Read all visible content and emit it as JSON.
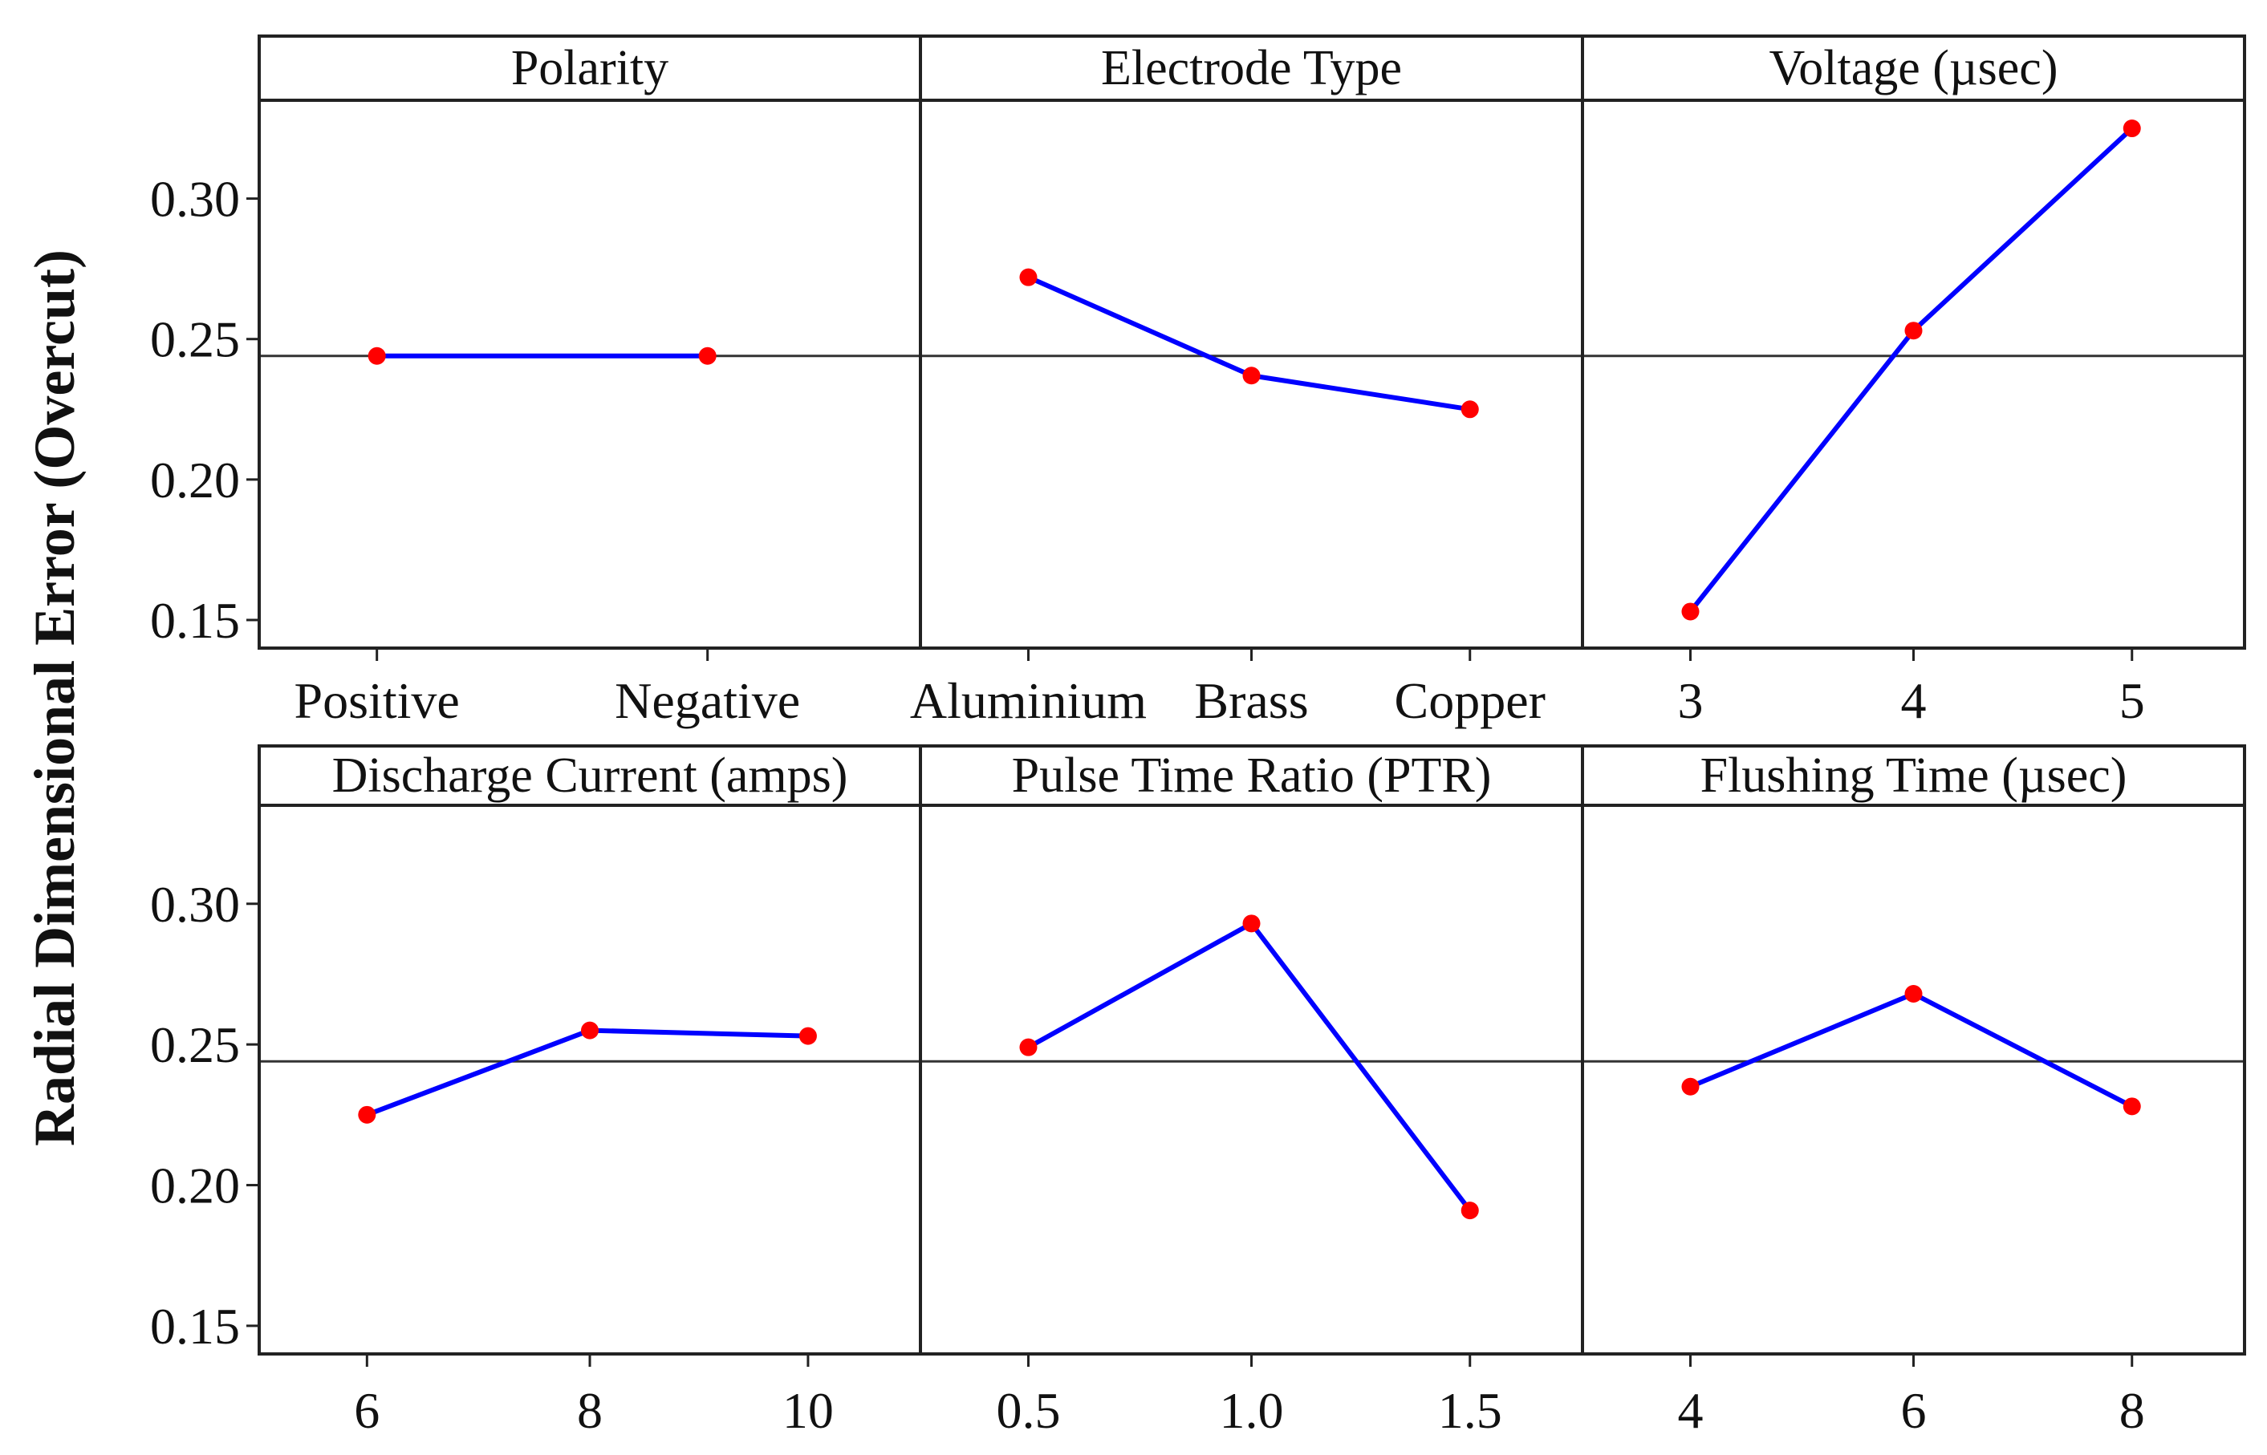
{
  "chart_data": {
    "type": "line",
    "ylabel": "Radial Dimensional Error (Overcut)",
    "ylim": [
      0.14,
      0.335
    ],
    "yticks": [
      0.15,
      0.2,
      0.25,
      0.3
    ],
    "ytick_labels": [
      "0.15",
      "0.20",
      "0.25",
      "0.30"
    ],
    "reference_mean": 0.244,
    "marker_color": "#ff0000",
    "line_color": "#0000ff",
    "panels": [
      {
        "title": "Polarity",
        "categories": [
          "Positive",
          "Negative"
        ],
        "values": [
          0.244,
          0.244
        ]
      },
      {
        "title": "Electrode Type",
        "categories": [
          "Aluminium",
          "Brass",
          "Copper"
        ],
        "values": [
          0.272,
          0.237,
          0.225
        ]
      },
      {
        "title": "Voltage (µsec)",
        "categories": [
          "3",
          "4",
          "5"
        ],
        "values": [
          0.153,
          0.253,
          0.325
        ]
      },
      {
        "title": "Discharge Current (amps)",
        "categories": [
          "6",
          "8",
          "10"
        ],
        "values": [
          0.225,
          0.255,
          0.253
        ]
      },
      {
        "title": "Pulse Time Ratio (PTR)",
        "categories": [
          "0.5",
          "1.0",
          "1.5"
        ],
        "values": [
          0.249,
          0.293,
          0.191
        ]
      },
      {
        "title": "Flushing Time (µsec)",
        "categories": [
          "4",
          "6",
          "8"
        ],
        "values": [
          0.235,
          0.268,
          0.228
        ]
      }
    ]
  }
}
